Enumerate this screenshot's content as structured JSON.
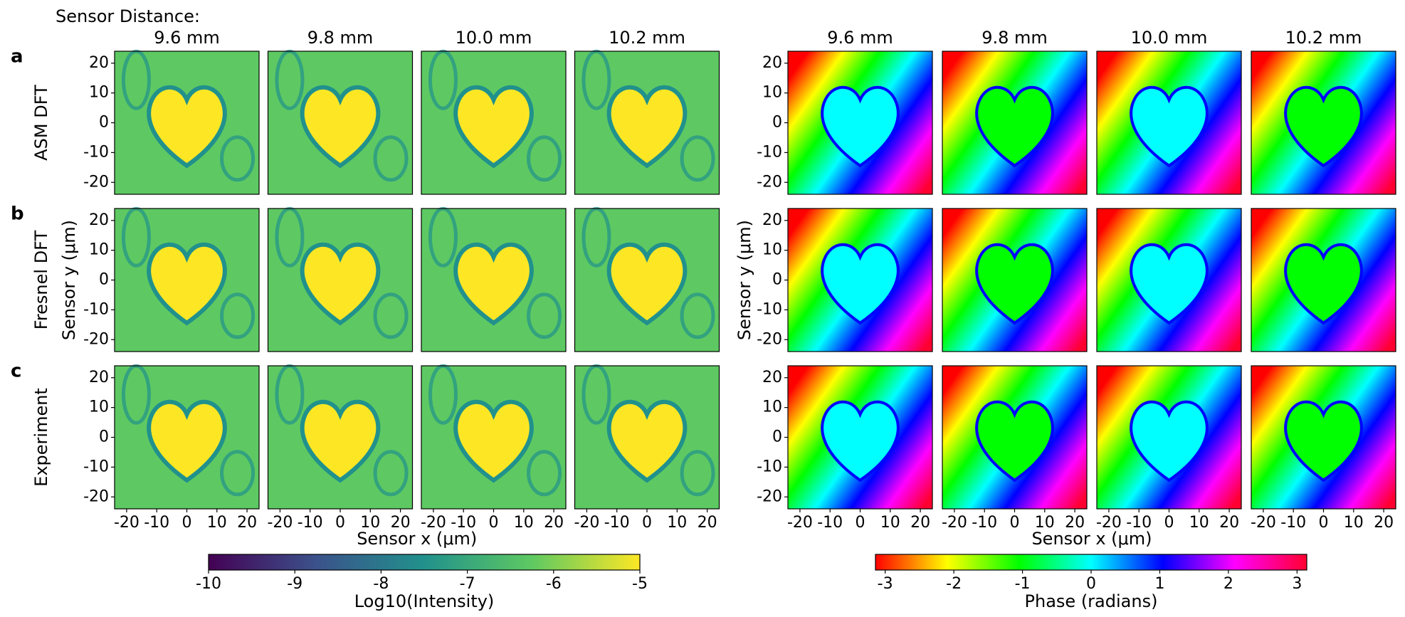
{
  "header": "Sensor Distance:",
  "columns": [
    "9.6 mm",
    "9.8 mm",
    "10.0 mm",
    "10.2 mm"
  ],
  "rows": [
    {
      "letter": "a",
      "label": "ASM DFT"
    },
    {
      "letter": "b",
      "label": "Fresnel DFT"
    },
    {
      "letter": "c",
      "label": "Experiment"
    }
  ],
  "chart_data": [
    {
      "type": "heatmap",
      "xlabel": "Sensor x (μm)",
      "ylabel": "Sensor y (μm)",
      "xlim": [
        -24,
        24
      ],
      "xticks": [
        -20,
        -10,
        0,
        10,
        20
      ],
      "ylim": [
        -24,
        24
      ],
      "yticks": [
        -20,
        -10,
        0,
        10,
        20
      ],
      "colorbar": {
        "label": "Log10(Intensity)",
        "lim": [
          -10,
          -5
        ],
        "ticks": [
          -10,
          -9,
          -8,
          -7,
          -6,
          -5
        ],
        "colormap": [
          "#440154",
          "#3b528b",
          "#21918c",
          "#5ec962",
          "#fde725"
        ]
      }
    },
    {
      "type": "heatmap",
      "xlabel": "Sensor x (μm)",
      "ylabel": "Sensor y (μm)",
      "xlim": [
        -24,
        24
      ],
      "xticks": [
        -20,
        -10,
        0,
        10,
        20
      ],
      "ylim": [
        -24,
        24
      ],
      "yticks": [
        -20,
        -10,
        0,
        10,
        20
      ],
      "colorbar": {
        "label": "Phase (radians)",
        "lim": [
          -3.14159,
          3.14159
        ],
        "ticks": [
          -3,
          -2,
          -1,
          0,
          1,
          2,
          3
        ],
        "colormap": [
          "#ff0000",
          "#ffff00",
          "#00ff00",
          "#00ffff",
          "#0000ff",
          "#ff00ff",
          "#ff0030"
        ]
      }
    }
  ]
}
